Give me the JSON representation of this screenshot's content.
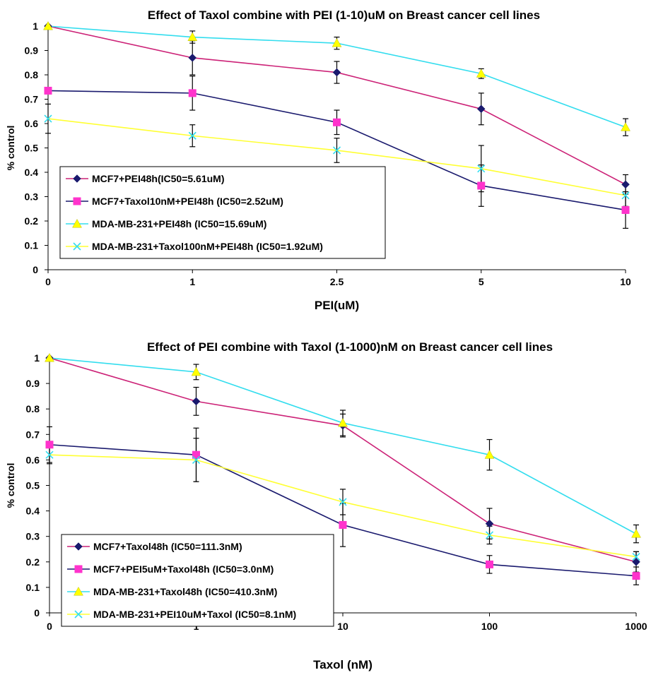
{
  "chart_data": [
    {
      "type": "line",
      "title": "Effect of Taxol combine with PEI (1-10)uM on Breast cancer cell lines",
      "xlabel": "PEI(uM)",
      "ylabel": "% control",
      "categories": [
        "0",
        "1",
        "2.5",
        "5",
        "10"
      ],
      "y_ticks": [
        "0",
        "0.1",
        "0.2",
        "0.3",
        "0.4",
        "0.5",
        "0.6",
        "0.7",
        "0.8",
        "0.9",
        "1"
      ],
      "ylim": [
        0,
        1
      ],
      "grid": false,
      "legend_position": "bottom-left",
      "series": [
        {
          "name": "MCF7+PEI48h(IC50=5.61uM)",
          "color": "#cc2277",
          "marker": "diamond",
          "marker_color": "#1a1a6e",
          "values": [
            1.0,
            0.87,
            0.81,
            0.66,
            0.35
          ],
          "errors": [
            0.0,
            0.07,
            0.045,
            0.065,
            0.04
          ]
        },
        {
          "name": "MCF7+Taxol10nM+PEI48h (IC50=2.52uM)",
          "color": "#1a1a6e",
          "marker": "square",
          "marker_color": "#ff33cc",
          "values": [
            0.735,
            0.725,
            0.605,
            0.345,
            0.245
          ],
          "errors": [
            0.0,
            0.07,
            0.05,
            0.085,
            0.075
          ]
        },
        {
          "name": "MDA-MB-231+PEI48h (IC50=15.69uM)",
          "color": "#33ddee",
          "marker": "triangle",
          "marker_color": "#ffff00",
          "values": [
            1.0,
            0.955,
            0.93,
            0.805,
            0.585
          ],
          "errors": [
            0.0,
            0.025,
            0.025,
            0.02,
            0.035
          ]
        },
        {
          "name": "MDA-MB-231+Taxol100nM+PEI48h (IC50=1.92uM)",
          "color": "#ffff33",
          "marker": "x",
          "marker_color": "#33ddee",
          "values": [
            0.62,
            0.55,
            0.49,
            0.415,
            0.305
          ],
          "errors": [
            0.06,
            0.045,
            0.05,
            0.095,
            0.045
          ]
        }
      ]
    },
    {
      "type": "line",
      "title": "Effect of PEI combine with Taxol (1-1000)nM on Breast cancer cell lines",
      "xlabel": "Taxol (nM)",
      "ylabel": "% control",
      "categories": [
        "0",
        "1",
        "10",
        "100",
        "1000"
      ],
      "y_ticks": [
        "0",
        "0.1",
        "0.2",
        "0.3",
        "0.4",
        "0.5",
        "0.6",
        "0.7",
        "0.8",
        "0.9",
        "1"
      ],
      "ylim": [
        0,
        1
      ],
      "grid": false,
      "legend_position": "bottom-left",
      "series": [
        {
          "name": "MCF7+Taxol48h (IC50=111.3nM)",
          "color": "#cc2277",
          "marker": "diamond",
          "marker_color": "#1a1a6e",
          "values": [
            1.0,
            0.83,
            0.735,
            0.35,
            0.2
          ],
          "errors": [
            0.0,
            0.055,
            0.045,
            0.06,
            0.04
          ]
        },
        {
          "name": "MCF7+PEI5uM+Taxol48h (IC50=3.0nM)",
          "color": "#1a1a6e",
          "marker": "square",
          "marker_color": "#ff33cc",
          "values": [
            0.66,
            0.62,
            0.345,
            0.19,
            0.145
          ],
          "errors": [
            0.07,
            0.105,
            0.085,
            0.035,
            0.035
          ]
        },
        {
          "name": "MDA-MB-231+Taxol48h (IC50=410.3nM)",
          "color": "#33ddee",
          "marker": "triangle",
          "marker_color": "#ffff00",
          "values": [
            1.0,
            0.945,
            0.745,
            0.62,
            0.31
          ],
          "errors": [
            0.0,
            0.03,
            0.05,
            0.06,
            0.035
          ]
        },
        {
          "name": "MDA-MB-231+PEI10uM+Taxol (IC50=8.1nM)",
          "color": "#ffff33",
          "marker": "x",
          "marker_color": "#33ddee",
          "values": [
            0.62,
            0.6,
            0.435,
            0.305,
            0.22
          ],
          "errors": [
            0.035,
            0.085,
            0.05,
            0.035,
            0.02
          ]
        }
      ]
    }
  ]
}
